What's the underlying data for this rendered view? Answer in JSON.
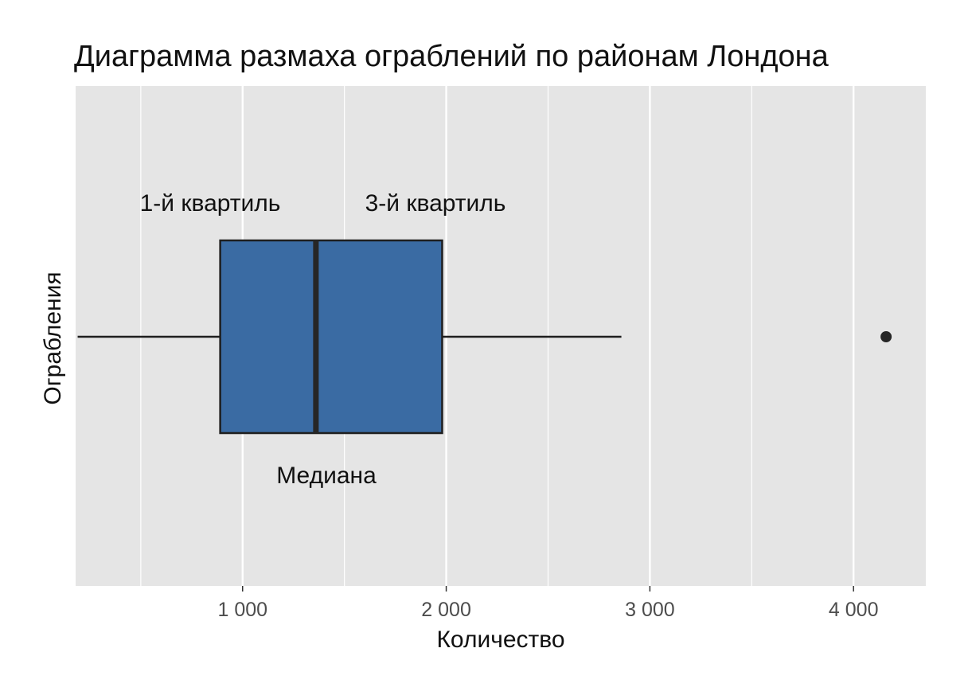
{
  "chart_data": {
    "type": "box",
    "title": "Диаграмма размаха ограблений по районам Лондона",
    "xlabel": "Количество",
    "ylabel": "Ограбления",
    "xlim": [
      180,
      4355
    ],
    "xticks": [
      1000,
      2000,
      3000,
      4000
    ],
    "xtick_labels": [
      "1 000",
      "2 000",
      "3 000",
      "4 000"
    ],
    "grid": true,
    "box": {
      "whisker_low": 190,
      "q1": 890,
      "median": 1360,
      "q3": 1980,
      "whisker_high": 2860,
      "outliers": [
        4160
      ]
    },
    "annotations": [
      {
        "text": "1-й квартиль"
      },
      {
        "text": "3-й квартиль"
      },
      {
        "text": "Медиана"
      }
    ],
    "colors": {
      "panel": "#e5e5e5",
      "grid": "#ffffff",
      "box_fill": "#3a6ba3",
      "box_stroke": "#1f1f1f",
      "median": "#262626",
      "outlier": "#262626"
    }
  }
}
